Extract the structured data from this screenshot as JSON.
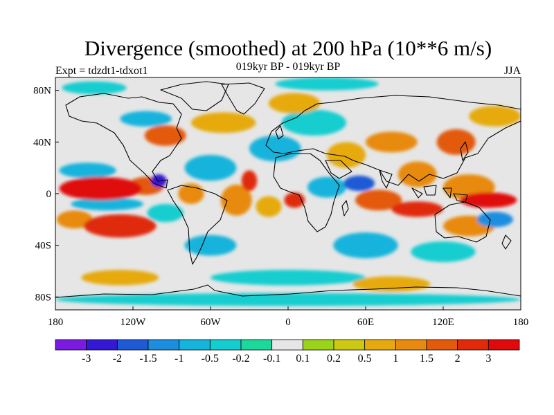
{
  "chart_data": {
    "type": "heatmap",
    "title": "Divergence (smoothed) at 200 hPa (10**6 m/s)",
    "left_string": "Expt = tdzdt1-tdxot1",
    "center_string": "019kyr BP - 019kyr BP",
    "right_string": "JJA",
    "x_ticks": [
      {
        "value": -180,
        "label": "180"
      },
      {
        "value": -120,
        "label": "120W"
      },
      {
        "value": -60,
        "label": "60W"
      },
      {
        "value": 0,
        "label": "0"
      },
      {
        "value": 60,
        "label": "60E"
      },
      {
        "value": 120,
        "label": "120E"
      },
      {
        "value": 180,
        "label": "180"
      }
    ],
    "y_ticks": [
      {
        "value": 80,
        "label": "80N"
      },
      {
        "value": 40,
        "label": "40N"
      },
      {
        "value": 0,
        "label": "0"
      },
      {
        "value": -40,
        "label": "40S"
      },
      {
        "value": -80,
        "label": "80S"
      }
    ],
    "xlim": [
      -180,
      180
    ],
    "ylim": [
      -90,
      90
    ],
    "colorbar": {
      "levels": [
        "-3",
        "-2",
        "-1.5",
        "-1",
        "-0.5",
        "-0.2",
        "-0.1",
        "0.1",
        "0.2",
        "0.5",
        "1",
        "1.5",
        "2",
        "3"
      ],
      "colors": [
        "#7b1be0",
        "#3518d6",
        "#1f5ad6",
        "#1b8ee0",
        "#14b4dc",
        "#14cdd0",
        "#1ad99a",
        "#e6e6e6",
        "#9bd21a",
        "#ccc814",
        "#e6aa10",
        "#e88a10",
        "#e35a0c",
        "#e02a0a",
        "#e00a0a"
      ]
    },
    "features": [
      {
        "lon": -145,
        "lat": 4,
        "value": 3,
        "rx": 32,
        "ry": 9
      },
      {
        "lon": -110,
        "lat": 6,
        "value": 1.5,
        "rx": 14,
        "ry": 7
      },
      {
        "lon": -130,
        "lat": -25,
        "value": 2,
        "rx": 28,
        "ry": 9
      },
      {
        "lon": -165,
        "lat": -20,
        "value": 1,
        "rx": 14,
        "ry": 7
      },
      {
        "lon": -100,
        "lat": 10,
        "value": -2.5,
        "rx": 6,
        "ry": 5
      },
      {
        "lon": -140,
        "lat": -8,
        "value": -1,
        "rx": 28,
        "ry": 5
      },
      {
        "lon": -155,
        "lat": 18,
        "value": -1,
        "rx": 22,
        "ry": 6
      },
      {
        "lon": -95,
        "lat": -15,
        "value": -0.5,
        "rx": 14,
        "ry": 7
      },
      {
        "lon": -75,
        "lat": 0,
        "value": 1,
        "rx": 10,
        "ry": 8
      },
      {
        "lon": -40,
        "lat": -5,
        "value": 1,
        "rx": 12,
        "ry": 12
      },
      {
        "lon": -15,
        "lat": -10,
        "value": 0.5,
        "rx": 10,
        "ry": 8
      },
      {
        "lon": -30,
        "lat": 10,
        "value": 2,
        "rx": 6,
        "ry": 8
      },
      {
        "lon": 5,
        "lat": -5,
        "value": 2,
        "rx": 8,
        "ry": 6
      },
      {
        "lon": -60,
        "lat": -40,
        "value": -1,
        "rx": 20,
        "ry": 8
      },
      {
        "lon": -60,
        "lat": 20,
        "value": -1,
        "rx": 20,
        "ry": 10
      },
      {
        "lon": -10,
        "lat": 35,
        "value": -1,
        "rx": 20,
        "ry": 10
      },
      {
        "lon": -95,
        "lat": 45,
        "value": 1.5,
        "rx": 16,
        "ry": 8
      },
      {
        "lon": -50,
        "lat": 55,
        "value": 0.5,
        "rx": 25,
        "ry": 8
      },
      {
        "lon": -110,
        "lat": 58,
        "value": -1,
        "rx": 20,
        "ry": 6
      },
      {
        "lon": 20,
        "lat": 55,
        "value": -0.5,
        "rx": 25,
        "ry": 10
      },
      {
        "lon": 5,
        "lat": 70,
        "value": 0.5,
        "rx": 20,
        "ry": 8
      },
      {
        "lon": 45,
        "lat": 30,
        "value": 0.5,
        "rx": 15,
        "ry": 10
      },
      {
        "lon": 30,
        "lat": 5,
        "value": -1,
        "rx": 15,
        "ry": 8
      },
      {
        "lon": 55,
        "lat": 8,
        "value": -2,
        "rx": 12,
        "ry": 6
      },
      {
        "lon": 70,
        "lat": -5,
        "value": 1.5,
        "rx": 18,
        "ry": 8
      },
      {
        "lon": 100,
        "lat": -12,
        "value": 2,
        "rx": 20,
        "ry": 6
      },
      {
        "lon": 100,
        "lat": 15,
        "value": 1,
        "rx": 15,
        "ry": 10
      },
      {
        "lon": 140,
        "lat": 5,
        "value": 1,
        "rx": 20,
        "ry": 10
      },
      {
        "lon": 155,
        "lat": -5,
        "value": 3,
        "rx": 22,
        "ry": 6
      },
      {
        "lon": 140,
        "lat": -25,
        "value": 1,
        "rx": 20,
        "ry": 8
      },
      {
        "lon": 160,
        "lat": -20,
        "value": -1.5,
        "rx": 14,
        "ry": 6
      },
      {
        "lon": 80,
        "lat": 40,
        "value": 1,
        "rx": 20,
        "ry": 8
      },
      {
        "lon": 130,
        "lat": 40,
        "value": 1.5,
        "rx": 15,
        "ry": 10
      },
      {
        "lon": 160,
        "lat": 60,
        "value": 0.5,
        "rx": 20,
        "ry": 8
      },
      {
        "lon": 60,
        "lat": -40,
        "value": -1,
        "rx": 25,
        "ry": 10
      },
      {
        "lon": 120,
        "lat": -45,
        "value": -0.5,
        "rx": 25,
        "ry": 8
      },
      {
        "lon": 0,
        "lat": -65,
        "value": -0.5,
        "rx": 60,
        "ry": 6
      },
      {
        "lon": -130,
        "lat": -65,
        "value": 0.5,
        "rx": 30,
        "ry": 6
      },
      {
        "lon": 80,
        "lat": -70,
        "value": 0.5,
        "rx": 30,
        "ry": 6
      },
      {
        "lon": 0,
        "lat": -82,
        "value": -0.5,
        "rx": 180,
        "ry": 5
      },
      {
        "lon": -150,
        "lat": 82,
        "value": -0.5,
        "rx": 25,
        "ry": 5
      },
      {
        "lon": 30,
        "lat": 85,
        "value": -0.5,
        "rx": 40,
        "ry": 5
      }
    ]
  }
}
